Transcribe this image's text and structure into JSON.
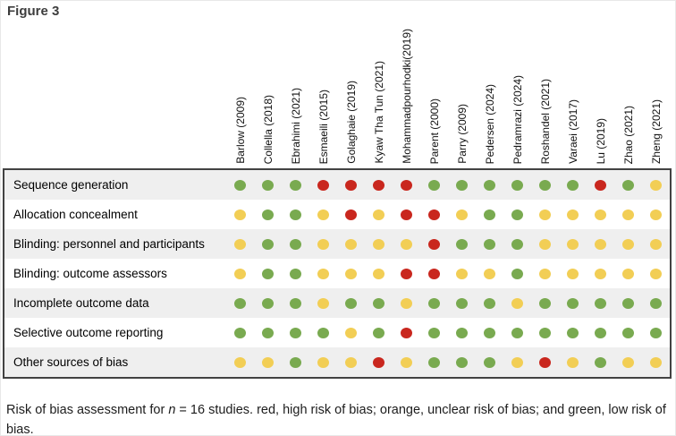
{
  "figure": {
    "title": "Figure 3"
  },
  "caption": {
    "before_n": "Risk of bias assessment for ",
    "n": "n",
    "after_n": " = 16 studies. red, high risk of bias; orange, unclear risk of bias; and green, low risk of bias."
  },
  "legend": [
    {
      "color": "red",
      "meaning": "high risk of bias"
    },
    {
      "color": "orange",
      "meaning": "unclear risk of bias"
    },
    {
      "color": "green",
      "meaning": "low risk of bias"
    }
  ],
  "legend_colors": {
    "green": "#79aa50",
    "yellow": "#f2ce55",
    "red": "#c9271e"
  },
  "chart_data": {
    "type": "heatmap",
    "title": "Figure 3",
    "columns": [
      "Barlow (2009)",
      "Collella (2018)",
      "Ebrahimi (2021)",
      "Esmaeili (2015)",
      "Golaghaie (2019)",
      "Kyaw Tha Tun (2021)",
      "Mohammadpourhodki(2019)",
      "Parent (2000)",
      "Parry (2009)",
      "Pedersen (2024)",
      "Pedramrazi (2024)",
      "Roshandel (2021)",
      "Varaei (2017)",
      "Lu (2019)",
      "Zhao (2021)",
      "Zheng (2021)"
    ],
    "rows": [
      "Sequence generation",
      "Allocation concealment",
      "Blinding: personnel and participants",
      "Blinding: outcome assessors",
      "Incomplete outcome data",
      "Selective outcome reporting",
      "Other sources of bias"
    ],
    "values": [
      [
        "green",
        "green",
        "green",
        "red",
        "red",
        "red",
        "red",
        "green",
        "green",
        "green",
        "green",
        "green",
        "green",
        "red",
        "green",
        "yellow"
      ],
      [
        "yellow",
        "green",
        "green",
        "yellow",
        "red",
        "yellow",
        "red",
        "red",
        "yellow",
        "green",
        "green",
        "yellow",
        "yellow",
        "yellow",
        "yellow",
        "yellow"
      ],
      [
        "yellow",
        "green",
        "green",
        "yellow",
        "yellow",
        "yellow",
        "yellow",
        "red",
        "green",
        "green",
        "green",
        "yellow",
        "yellow",
        "yellow",
        "yellow",
        "yellow"
      ],
      [
        "yellow",
        "green",
        "green",
        "yellow",
        "yellow",
        "yellow",
        "red",
        "red",
        "yellow",
        "yellow",
        "green",
        "yellow",
        "yellow",
        "yellow",
        "yellow",
        "yellow"
      ],
      [
        "green",
        "green",
        "green",
        "yellow",
        "green",
        "green",
        "yellow",
        "green",
        "green",
        "green",
        "yellow",
        "green",
        "green",
        "green",
        "green",
        "green"
      ],
      [
        "green",
        "green",
        "green",
        "green",
        "yellow",
        "green",
        "red",
        "green",
        "green",
        "green",
        "green",
        "green",
        "green",
        "green",
        "green",
        "green"
      ],
      [
        "yellow",
        "yellow",
        "green",
        "yellow",
        "yellow",
        "red",
        "yellow",
        "green",
        "green",
        "green",
        "yellow",
        "red",
        "yellow",
        "green",
        "yellow",
        "yellow"
      ]
    ]
  }
}
